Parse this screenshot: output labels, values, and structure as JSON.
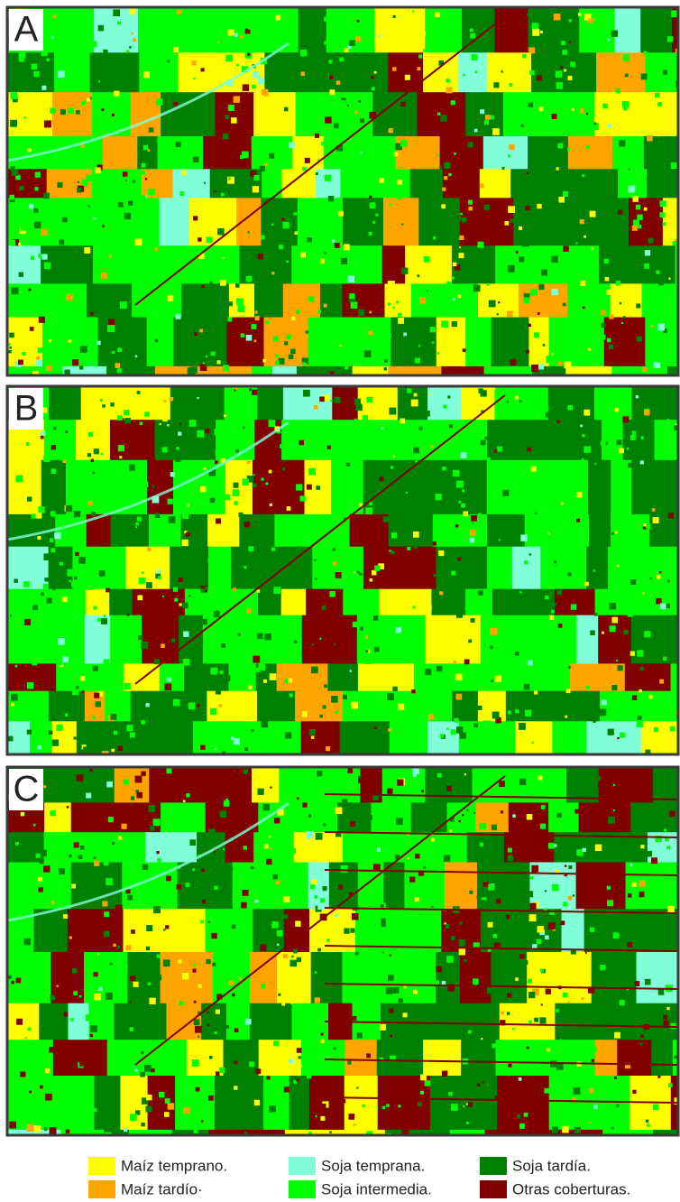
{
  "panels": [
    {
      "label": "A"
    },
    {
      "label": "B"
    },
    {
      "label": "C"
    }
  ],
  "legend": [
    {
      "label": "Maíz temprano.",
      "color": "#ffff00"
    },
    {
      "label": "Soja temprana.",
      "color": "#80ffd9"
    },
    {
      "label": "Soja tardía.",
      "color": "#008000"
    },
    {
      "label": "Maíz tardío·",
      "color": "#ffa500"
    },
    {
      "label": "Soja intermedia.",
      "color": "#00ff00"
    },
    {
      "label": "Otras coberturas.",
      "color": "#800000"
    }
  ]
}
